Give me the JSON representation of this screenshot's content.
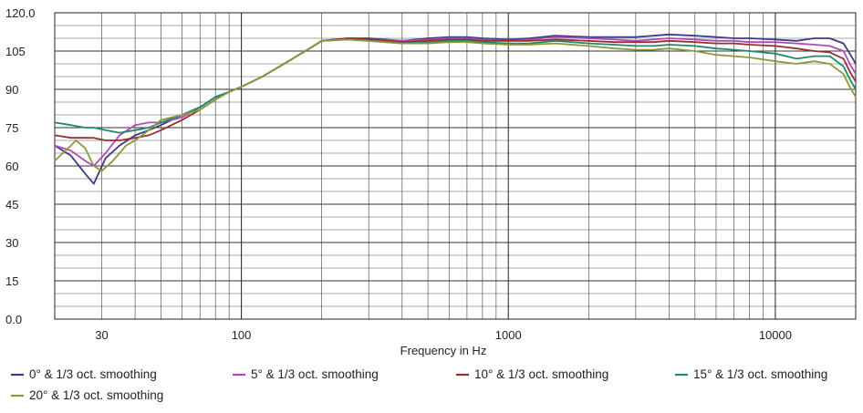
{
  "chart_data": {
    "type": "line",
    "title": "",
    "xlabel": "Frequency in Hz",
    "ylabel": "",
    "x_scale": "log",
    "xlim": [
      20,
      20000
    ],
    "ylim": [
      0,
      120
    ],
    "x_ticks": [
      30,
      100,
      1000,
      10000
    ],
    "x_tick_labels": [
      "30",
      "100",
      "1000",
      "10000"
    ],
    "y_ticks": [
      0,
      15,
      30,
      45,
      60,
      75,
      90,
      105,
      120
    ],
    "y_tick_labels": [
      "0.0",
      "15",
      "30",
      "45",
      "60",
      "75",
      "90",
      "105",
      "120.0"
    ],
    "grid": true,
    "legend_position": "bottom",
    "series": [
      {
        "name": "0° & 1/3 oct. smoothing",
        "color": "#3b3b86",
        "points": [
          [
            20,
            68
          ],
          [
            23,
            64
          ],
          [
            26,
            57
          ],
          [
            28,
            53
          ],
          [
            31,
            63
          ],
          [
            35,
            68
          ],
          [
            40,
            72
          ],
          [
            45,
            74
          ],
          [
            50,
            76
          ],
          [
            60,
            80
          ],
          [
            70,
            83
          ],
          [
            80,
            87
          ],
          [
            90,
            89
          ],
          [
            100,
            91
          ],
          [
            120,
            95
          ],
          [
            150,
            101
          ],
          [
            180,
            106
          ],
          [
            200,
            109
          ],
          [
            250,
            110
          ],
          [
            300,
            110
          ],
          [
            400,
            109
          ],
          [
            500,
            110
          ],
          [
            600,
            110.5
          ],
          [
            700,
            110.5
          ],
          [
            800,
            110
          ],
          [
            1000,
            109.5
          ],
          [
            1200,
            110
          ],
          [
            1500,
            111
          ],
          [
            2000,
            110.5
          ],
          [
            2500,
            110.5
          ],
          [
            3000,
            110.5
          ],
          [
            3500,
            111
          ],
          [
            4000,
            111.5
          ],
          [
            5000,
            111
          ],
          [
            6000,
            110.5
          ],
          [
            7000,
            110
          ],
          [
            8000,
            110
          ],
          [
            10000,
            109.5
          ],
          [
            12000,
            109
          ],
          [
            14000,
            110
          ],
          [
            16000,
            110
          ],
          [
            18000,
            108
          ],
          [
            19000,
            104
          ],
          [
            20000,
            100
          ]
        ]
      },
      {
        "name": "5° & 1/3 oct. smoothing",
        "color": "#b04ab8",
        "points": [
          [
            20,
            68
          ],
          [
            23,
            66
          ],
          [
            26,
            62
          ],
          [
            28,
            60
          ],
          [
            31,
            65
          ],
          [
            35,
            72
          ],
          [
            40,
            76
          ],
          [
            45,
            77
          ],
          [
            50,
            77
          ],
          [
            60,
            79
          ],
          [
            70,
            83
          ],
          [
            80,
            87
          ],
          [
            90,
            89
          ],
          [
            100,
            91
          ],
          [
            120,
            95
          ],
          [
            150,
            101
          ],
          [
            180,
            106
          ],
          [
            200,
            109
          ],
          [
            250,
            110
          ],
          [
            300,
            109.5
          ],
          [
            400,
            109
          ],
          [
            500,
            109.5
          ],
          [
            600,
            110
          ],
          [
            700,
            110
          ],
          [
            800,
            109.5
          ],
          [
            1000,
            109
          ],
          [
            1200,
            109.5
          ],
          [
            1500,
            110.5
          ],
          [
            2000,
            110
          ],
          [
            2500,
            109.5
          ],
          [
            3000,
            109
          ],
          [
            3500,
            109.5
          ],
          [
            4000,
            110
          ],
          [
            5000,
            109.5
          ],
          [
            6000,
            109
          ],
          [
            7000,
            109
          ],
          [
            8000,
            108.5
          ],
          [
            10000,
            108.5
          ],
          [
            12000,
            108
          ],
          [
            14000,
            107.5
          ],
          [
            16000,
            107
          ],
          [
            18000,
            105
          ],
          [
            19000,
            100
          ],
          [
            20000,
            96
          ]
        ]
      },
      {
        "name": "10° & 1/3 oct. smoothing",
        "color": "#9b2d2d",
        "points": [
          [
            20,
            72
          ],
          [
            23,
            71
          ],
          [
            26,
            71
          ],
          [
            28,
            71
          ],
          [
            31,
            70
          ],
          [
            35,
            70
          ],
          [
            40,
            71
          ],
          [
            45,
            72
          ],
          [
            50,
            74
          ],
          [
            60,
            78
          ],
          [
            70,
            82
          ],
          [
            80,
            86
          ],
          [
            90,
            89
          ],
          [
            100,
            91
          ],
          [
            120,
            95
          ],
          [
            150,
            101
          ],
          [
            180,
            106
          ],
          [
            200,
            109
          ],
          [
            250,
            110
          ],
          [
            300,
            109.5
          ],
          [
            400,
            108.5
          ],
          [
            500,
            109
          ],
          [
            600,
            109.5
          ],
          [
            700,
            109.5
          ],
          [
            800,
            109
          ],
          [
            1000,
            109
          ],
          [
            1200,
            109
          ],
          [
            1500,
            109.5
          ],
          [
            2000,
            109
          ],
          [
            2500,
            108.5
          ],
          [
            3000,
            108.5
          ],
          [
            3500,
            108.5
          ],
          [
            4000,
            109
          ],
          [
            5000,
            108.5
          ],
          [
            6000,
            108
          ],
          [
            7000,
            108
          ],
          [
            8000,
            107.5
          ],
          [
            10000,
            107
          ],
          [
            12000,
            106
          ],
          [
            14000,
            105
          ],
          [
            16000,
            104.5
          ],
          [
            18000,
            102
          ],
          [
            19000,
            97
          ],
          [
            20000,
            93
          ]
        ]
      },
      {
        "name": "15° & 1/3 oct. smoothing",
        "color": "#1f8a6a",
        "points": [
          [
            20,
            77
          ],
          [
            23,
            76
          ],
          [
            26,
            75
          ],
          [
            28,
            75
          ],
          [
            31,
            74
          ],
          [
            35,
            73
          ],
          [
            40,
            74
          ],
          [
            45,
            75
          ],
          [
            50,
            77
          ],
          [
            60,
            80
          ],
          [
            70,
            83
          ],
          [
            80,
            87
          ],
          [
            90,
            89
          ],
          [
            100,
            91
          ],
          [
            120,
            95
          ],
          [
            150,
            101
          ],
          [
            180,
            106
          ],
          [
            200,
            109
          ],
          [
            250,
            109.5
          ],
          [
            300,
            109
          ],
          [
            400,
            108
          ],
          [
            500,
            108.5
          ],
          [
            600,
            109
          ],
          [
            700,
            109
          ],
          [
            800,
            108.5
          ],
          [
            1000,
            108
          ],
          [
            1200,
            108
          ],
          [
            1500,
            109
          ],
          [
            2000,
            108
          ],
          [
            2500,
            107.5
          ],
          [
            3000,
            107
          ],
          [
            3500,
            107
          ],
          [
            4000,
            107.5
          ],
          [
            5000,
            107
          ],
          [
            6000,
            106
          ],
          [
            7000,
            105.5
          ],
          [
            8000,
            105
          ],
          [
            10000,
            104
          ],
          [
            12000,
            102
          ],
          [
            14000,
            103
          ],
          [
            16000,
            103
          ],
          [
            18000,
            99
          ],
          [
            19000,
            94
          ],
          [
            20000,
            90
          ]
        ]
      },
      {
        "name": "20° & 1/3 oct. smoothing",
        "color": "#8a9a3a",
        "points": [
          [
            20,
            62
          ],
          [
            23,
            68
          ],
          [
            24,
            70
          ],
          [
            26,
            67
          ],
          [
            28,
            60
          ],
          [
            30,
            58
          ],
          [
            33,
            62
          ],
          [
            37,
            68
          ],
          [
            40,
            70
          ],
          [
            45,
            74
          ],
          [
            50,
            78
          ],
          [
            60,
            80
          ],
          [
            70,
            82
          ],
          [
            80,
            86
          ],
          [
            90,
            89
          ],
          [
            100,
            91
          ],
          [
            120,
            95
          ],
          [
            150,
            101
          ],
          [
            180,
            106
          ],
          [
            200,
            109
          ],
          [
            250,
            109.5
          ],
          [
            300,
            109
          ],
          [
            400,
            108
          ],
          [
            500,
            108
          ],
          [
            600,
            108.5
          ],
          [
            700,
            108.5
          ],
          [
            800,
            108
          ],
          [
            1000,
            107.5
          ],
          [
            1200,
            107.5
          ],
          [
            1500,
            108
          ],
          [
            2000,
            107
          ],
          [
            2500,
            106
          ],
          [
            3000,
            105.5
          ],
          [
            3500,
            105.5
          ],
          [
            4000,
            106
          ],
          [
            5000,
            105
          ],
          [
            6000,
            103.5
          ],
          [
            7000,
            103
          ],
          [
            8000,
            102.5
          ],
          [
            10000,
            101
          ],
          [
            12000,
            100
          ],
          [
            14000,
            101
          ],
          [
            16000,
            100
          ],
          [
            18000,
            96
          ],
          [
            19000,
            91
          ],
          [
            20000,
            87
          ]
        ]
      }
    ]
  }
}
